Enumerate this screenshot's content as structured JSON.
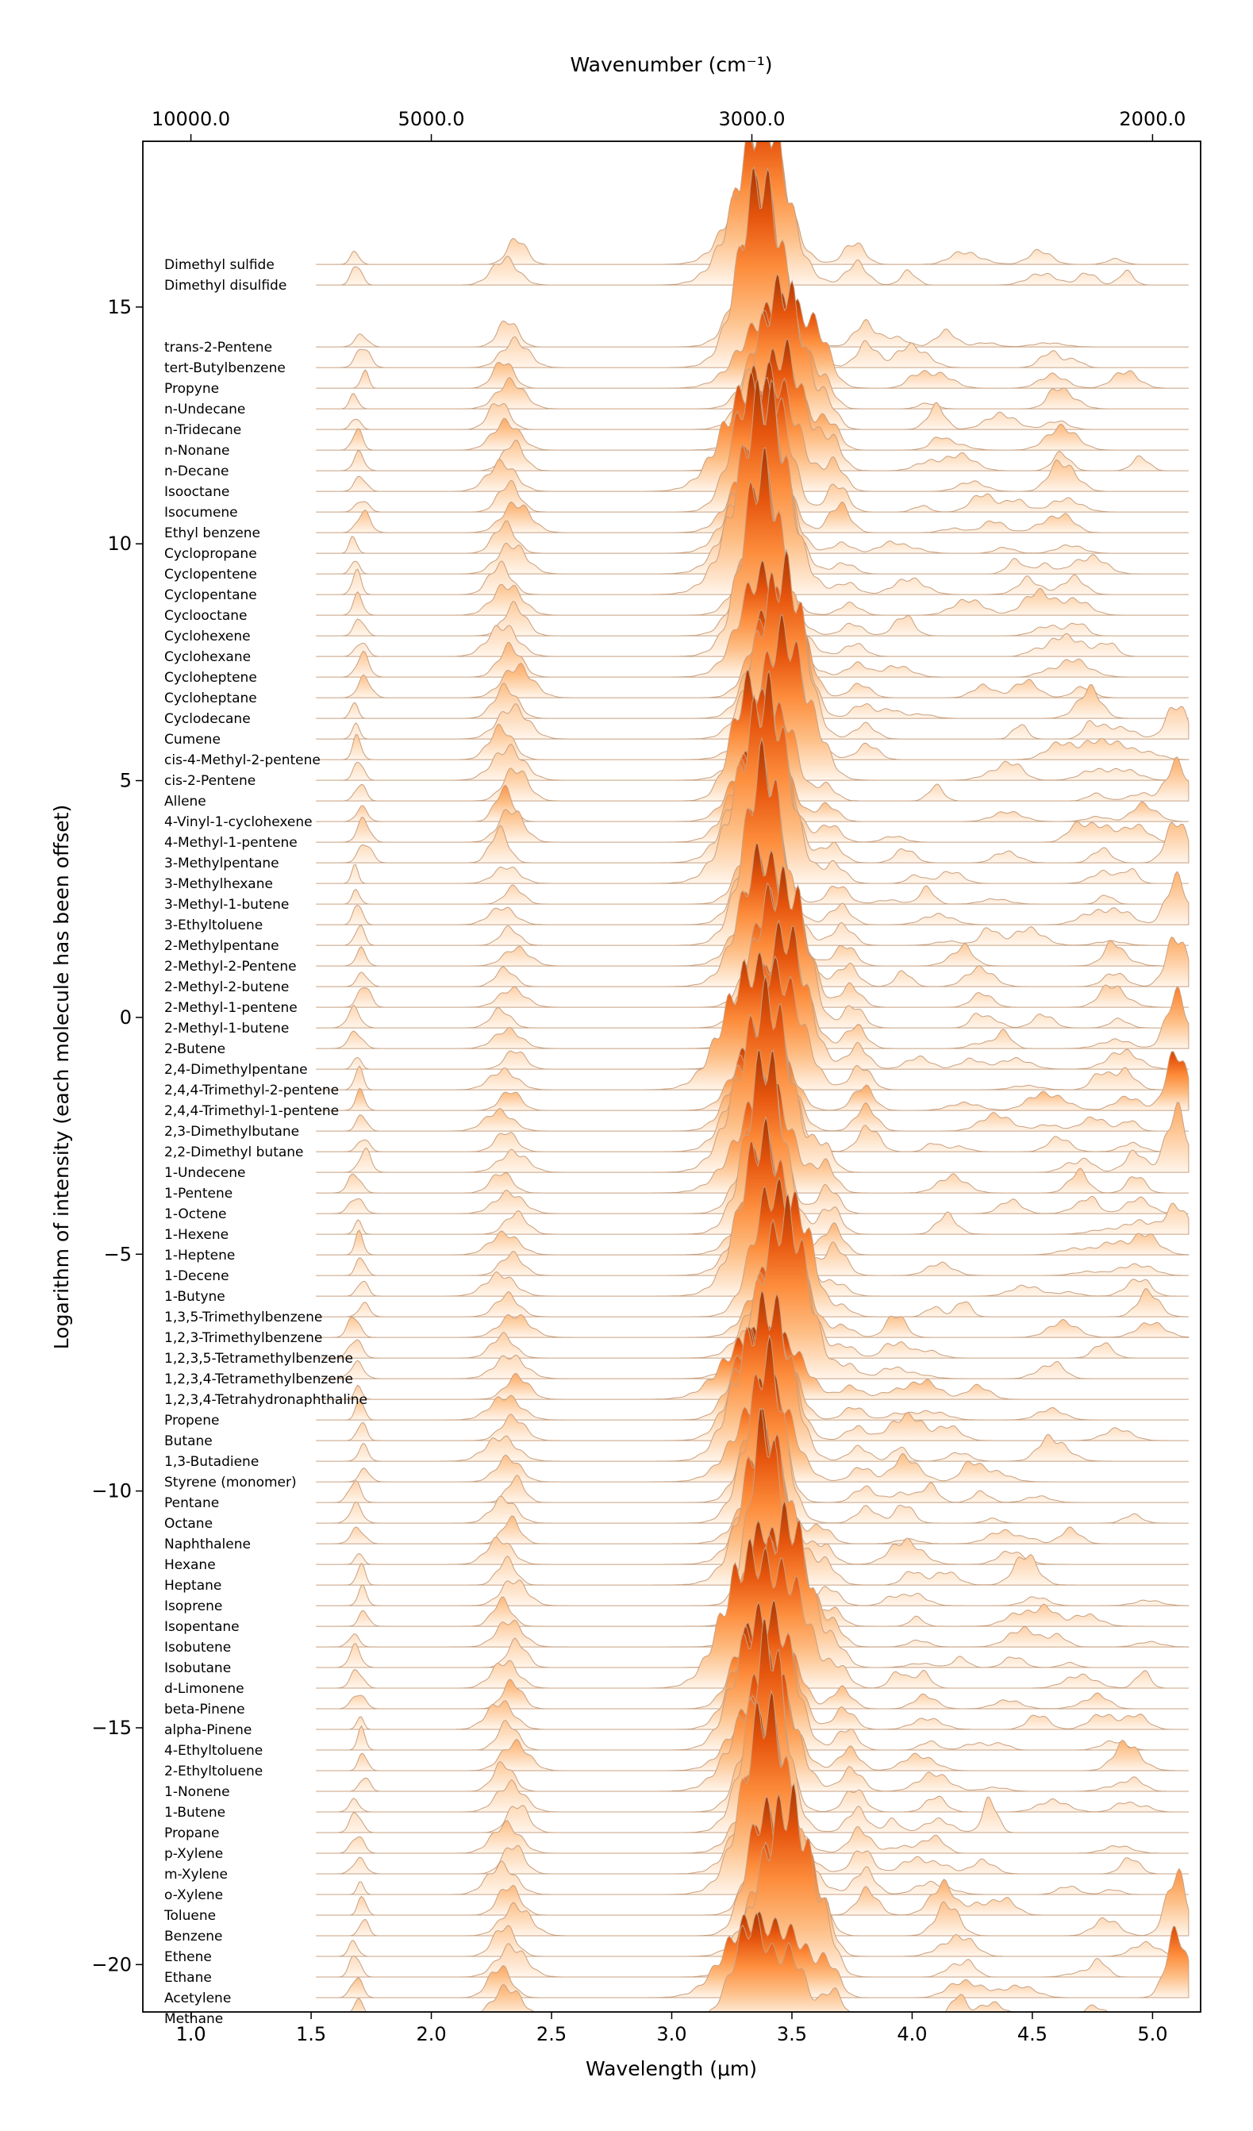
{
  "chart_data": {
    "type": "area",
    "style": "ridgeline (offset stacked spectra)",
    "xlabel": "Wavelength (μm)",
    "ylabel": "Logarithm of intensity (each molecule has been offset)",
    "top_xlabel": "Wavenumber (cm⁻¹)",
    "xlim": [
      0.8,
      5.2
    ],
    "ylim": [
      -21.0,
      18.5
    ],
    "xticks": [
      1.0,
      1.5,
      2.0,
      2.5,
      3.0,
      3.5,
      4.0,
      4.5,
      5.0
    ],
    "xtick_labels": [
      "1.0",
      "1.5",
      "2.0",
      "2.5",
      "3.0",
      "3.5",
      "4.0",
      "4.5",
      "5.0"
    ],
    "yticks": [
      15,
      10,
      5,
      0,
      -5,
      -10,
      -15,
      -20
    ],
    "ytick_labels": [
      "15",
      "10",
      "5",
      "0",
      "−5",
      "−10",
      "−15",
      "−20"
    ],
    "top_ticks_wavenumber": [
      10000.0,
      5000.0,
      3000.0,
      2000.0
    ],
    "top_tick_labels": [
      "10000.0",
      "5000.0",
      "3000.0",
      "2000.0"
    ],
    "molecule_offset_step": -0.4357,
    "first_baseline": 15.9,
    "colormap": [
      "#fff5eb",
      "#fdbe85",
      "#fd8d3c",
      "#e6550d",
      "#a63603"
    ],
    "line_color": "#c8a080",
    "molecules": [
      "Dimethyl sulfide",
      "Dimethyl disulfide",
      "",
      "",
      "trans-2-Pentene",
      "tert-Butylbenzene",
      "Propyne",
      "n-Undecane",
      "n-Tridecane",
      "n-Nonane",
      "n-Decane",
      "Isooctane",
      "Isocumene",
      "Ethyl benzene",
      "Cyclopropane",
      "Cyclopentene",
      "Cyclopentane",
      "Cyclooctane",
      "Cyclohexene",
      "Cyclohexane",
      "Cycloheptene",
      "Cycloheptane",
      "Cyclodecane",
      "Cumene",
      "cis-4-Methyl-2-pentene",
      "cis-2-Pentene",
      "Allene",
      "4-Vinyl-1-cyclohexene",
      "4-Methyl-1-pentene",
      "3-Methylpentane",
      "3-Methylhexane",
      "3-Methyl-1-butene",
      "3-Ethyltoluene",
      "2-Methylpentane",
      "2-Methyl-2-Pentene",
      "2-Methyl-2-butene",
      "2-Methyl-1-pentene",
      "2-Methyl-1-butene",
      "2-Butene",
      "2,4-Dimethylpentane",
      "2,4,4-Trimethyl-2-pentene",
      "2,4,4-Trimethyl-1-pentene",
      "2,3-Dimethylbutane",
      "2,2-Dimethyl butane",
      "1-Undecene",
      "1-Pentene",
      "1-Octene",
      "1-Hexene",
      "1-Heptene",
      "1-Decene",
      "1-Butyne",
      "1,3,5-Trimethylbenzene",
      "1,2,3-Trimethylbenzene",
      "1,2,3,5-Tetramethylbenzene",
      "1,2,3,4-Tetramethylbenzene",
      "1,2,3,4-Tetrahydronaphthaline",
      "Propene",
      "Butane",
      "1,3-Butadiene",
      "Styrene (monomer)",
      "Pentane",
      "Octane",
      "Naphthalene",
      "Hexane",
      "Heptane",
      "Isoprene",
      "Isopentane",
      "Isobutene",
      "Isobutane",
      "d-Limonene",
      "beta-Pinene",
      "alpha-Pinene",
      "4-Ethyltoluene",
      "2-Ethyltoluene",
      "1-Nonene",
      "1-Butene",
      "Propane",
      "p-Xylene",
      "m-Xylene",
      "o-Xylene",
      "Toluene",
      "Benzene",
      "Ethene",
      "Ethane",
      "Acetylene",
      "Methane"
    ]
  }
}
